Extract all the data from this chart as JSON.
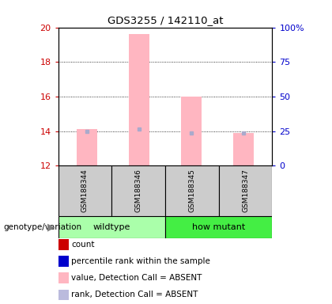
{
  "title": "GDS3255 / 142110_at",
  "samples": [
    "GSM188344",
    "GSM188346",
    "GSM188345",
    "GSM188347"
  ],
  "groups": [
    "wildtype",
    "wildtype",
    "how mutant",
    "how mutant"
  ],
  "group_labels": [
    "wildtype",
    "how mutant"
  ],
  "wildtype_color": "#AAFFAA",
  "howmutant_color": "#44EE44",
  "bar_values": [
    14.1,
    19.6,
    16.0,
    13.9
  ],
  "rank_values": [
    14.0,
    14.1,
    13.9,
    13.9
  ],
  "ylim_left": [
    12,
    20
  ],
  "ylim_right": [
    0,
    100
  ],
  "yticks_left": [
    12,
    14,
    16,
    18,
    20
  ],
  "yticks_right": [
    0,
    25,
    50,
    75,
    100
  ],
  "ytick_labels_right": [
    "0",
    "25",
    "50",
    "75",
    "100%"
  ],
  "bar_color": "#FFB6C1",
  "rank_color": "#AAAACC",
  "left_axis_color": "#CC0000",
  "right_axis_color": "#0000CC",
  "sample_box_color": "#CCCCCC",
  "legend_items": [
    {
      "label": "count",
      "color": "#CC0000"
    },
    {
      "label": "percentile rank within the sample",
      "color": "#0000CC"
    },
    {
      "label": "value, Detection Call = ABSENT",
      "color": "#FFB6C1"
    },
    {
      "label": "rank, Detection Call = ABSENT",
      "color": "#BBBBDD"
    }
  ],
  "genotype_label": "genotype/variation"
}
